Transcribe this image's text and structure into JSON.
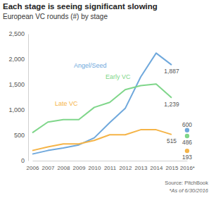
{
  "chart_data": {
    "type": "line",
    "title": "Each stage is seeing significant slowing",
    "subtitle": "European VC rounds (#) by stage",
    "categories": [
      "2006",
      "2007",
      "2008",
      "2009",
      "2010",
      "2011",
      "2012",
      "2013",
      "2014",
      "2015",
      "2016*"
    ],
    "ylim": [
      0,
      2500
    ],
    "yticks": [
      0,
      500,
      {
        "value": 1000,
        "label": "1,000"
      },
      {
        "value": 1500,
        "label": "1,500"
      },
      {
        "value": 2000,
        "label": "2,000"
      },
      {
        "value": 2500,
        "label": "2,500"
      }
    ],
    "grid": false,
    "data_labels": true,
    "series": [
      {
        "name": "Angel/Seed",
        "type": "line",
        "color": "#6fa8dc",
        "values": [
          130,
          200,
          250,
          310,
          450,
          750,
          1030,
          1650,
          2120,
          1887,
          null
        ],
        "value_labels": [
          null,
          null,
          null,
          null,
          null,
          null,
          null,
          null,
          null,
          "1,887",
          null
        ]
      },
      {
        "name": "Early VC",
        "type": "line",
        "color": "#7fd68a",
        "values": [
          550,
          760,
          810,
          810,
          1050,
          1150,
          1400,
          1480,
          1510,
          1239,
          null
        ],
        "value_labels": [
          null,
          null,
          null,
          null,
          null,
          null,
          null,
          null,
          null,
          "1,239",
          null
        ]
      },
      {
        "name": "Late VC",
        "type": "line",
        "color": "#f5b447",
        "values": [
          200,
          270,
          330,
          330,
          400,
          510,
          510,
          610,
          610,
          515,
          null
        ],
        "value_labels": [
          null,
          null,
          null,
          null,
          null,
          null,
          null,
          null,
          null,
          "515",
          null
        ]
      },
      {
        "type": "scatter",
        "marker": "circle",
        "color": "#6fa8dc",
        "values": [
          null,
          null,
          null,
          null,
          null,
          null,
          null,
          null,
          null,
          null,
          600
        ],
        "value_labels": [
          null,
          null,
          null,
          null,
          null,
          null,
          null,
          null,
          null,
          null,
          "600"
        ]
      },
      {
        "type": "scatter",
        "marker": "circle",
        "color": "#7fd68a",
        "values": [
          null,
          null,
          null,
          null,
          null,
          null,
          null,
          null,
          null,
          null,
          486
        ],
        "value_labels": [
          null,
          null,
          null,
          null,
          null,
          null,
          null,
          null,
          null,
          null,
          "486"
        ]
      },
      {
        "type": "scatter",
        "marker": "circle",
        "color": "#f5b447",
        "values": [
          null,
          null,
          null,
          null,
          null,
          null,
          null,
          null,
          null,
          null,
          193
        ],
        "value_labels": [
          null,
          null,
          null,
          null,
          null,
          null,
          null,
          null,
          null,
          null,
          "193"
        ]
      }
    ],
    "annotations": [
      "Source: PitchBook",
      "*As of 6/30/2016"
    ]
  }
}
